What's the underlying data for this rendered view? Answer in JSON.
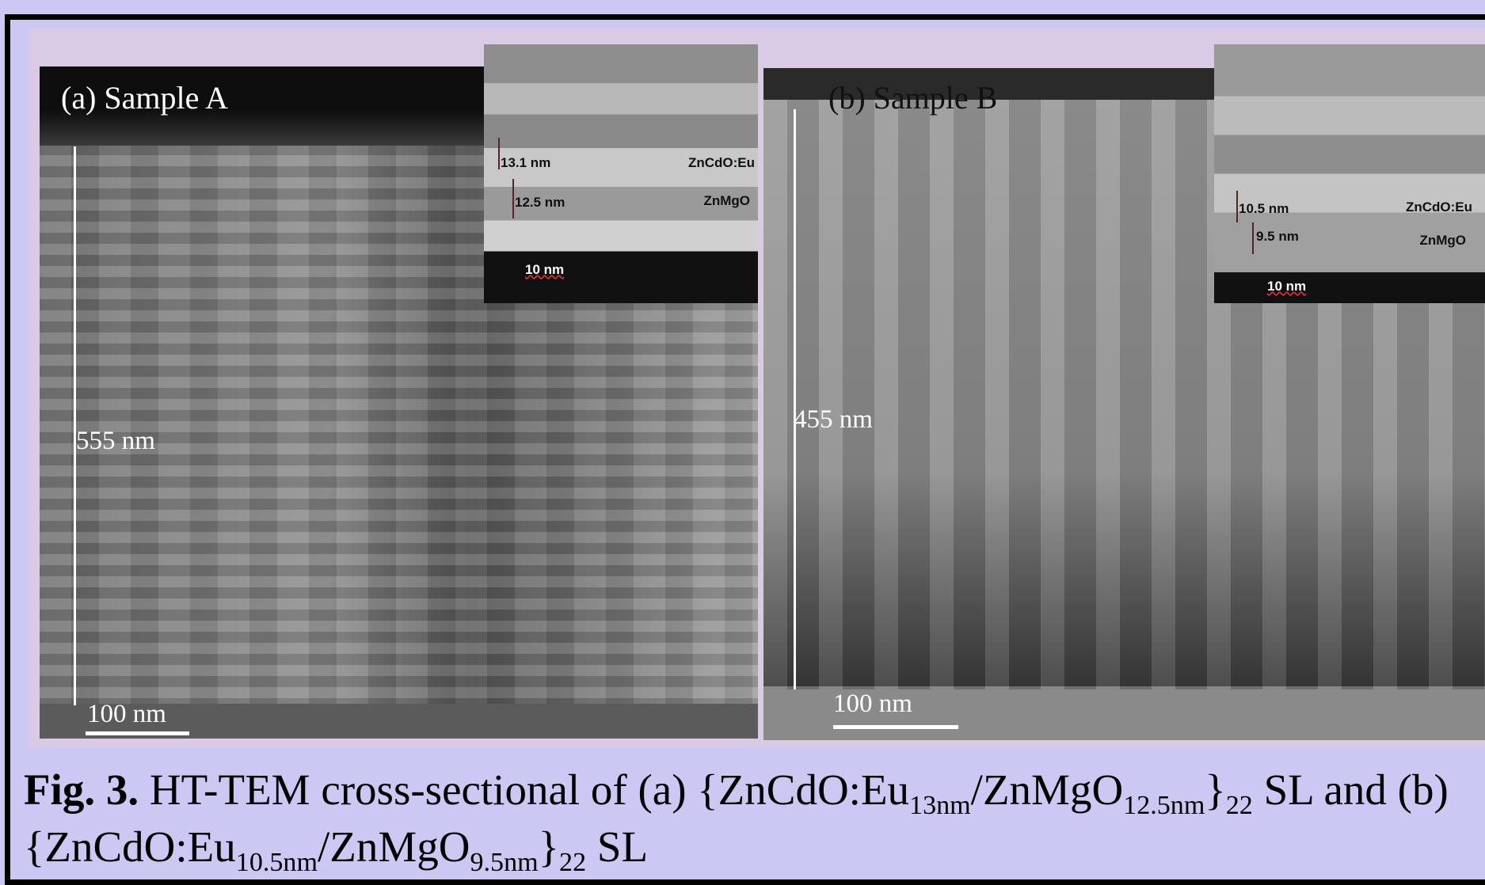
{
  "panels": [
    {
      "label": "(a) Sample A",
      "thickness": "555 nm",
      "scale_bar": "100 nm",
      "inset": {
        "layer_1": "13.1 nm",
        "layer_2": "12.5 nm",
        "material_1": "ZnCdO:Eu",
        "material_2": "ZnMgO",
        "scale_bar": "10 nm"
      }
    },
    {
      "label": "(b) Sample B",
      "thickness": "455 nm",
      "scale_bar": "100 nm",
      "inset": {
        "layer_1": "10.5 nm",
        "layer_2": "9.5 nm",
        "material_1": "ZnCdO:Eu",
        "material_2": "ZnMgO",
        "scale_bar": "10 nm"
      }
    }
  ],
  "caption": {
    "label": "Fig. 3.",
    "runs": [
      {
        "text": " HT-TEM cross-sectional of (a) {ZnCdO:Eu"
      },
      {
        "text": "13nm",
        "sub": true
      },
      {
        "text": "/ZnMgO"
      },
      {
        "text": "12.5nm",
        "sub": true
      },
      {
        "text": "}"
      },
      {
        "text": "22",
        "sub": true
      },
      {
        "text": " SL and (b) {ZnCdO:Eu"
      },
      {
        "text": "10.5nm",
        "sub": true
      },
      {
        "text": "/ZnMgO"
      },
      {
        "text": "9.5nm",
        "sub": true
      },
      {
        "text": "}"
      },
      {
        "text": "22",
        "sub": true
      },
      {
        "text": " SL"
      }
    ]
  }
}
